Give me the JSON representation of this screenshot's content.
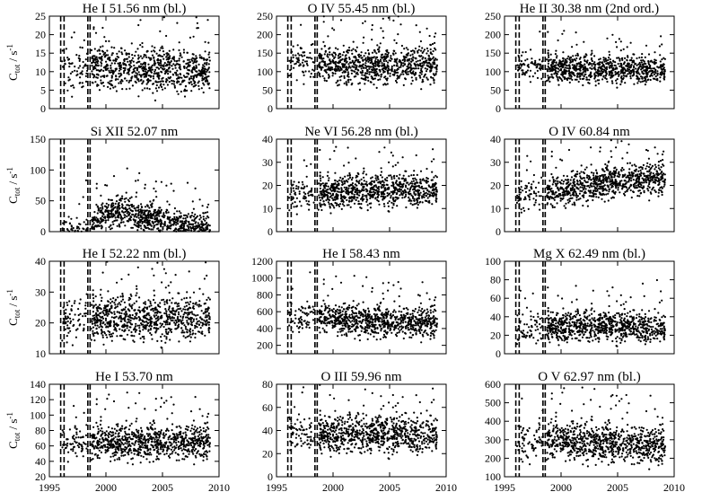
{
  "chart_data": [
    {
      "type": "scatter",
      "title": "He I 51.56 nm (bl.)",
      "ylabel": "C_tot / s^-1",
      "ylim": [
        0,
        25
      ],
      "yticks": [
        0,
        5,
        10,
        15,
        20,
        25
      ],
      "xlim": [
        1995,
        2010
      ],
      "xticks": [
        1995,
        2000,
        2005,
        2010
      ],
      "dashed_x": [
        1996.0,
        1996.3,
        1998.4,
        1998.6
      ],
      "trend_x": [
        1996.1,
        2000,
        2004,
        2009
      ],
      "trend_y": [
        10.5,
        11,
        10.5,
        10.5
      ],
      "spread": 2.8
    },
    {
      "type": "scatter",
      "title": "O IV 55.45 nm (bl.)",
      "ylabel": "",
      "ylim": [
        0,
        250
      ],
      "yticks": [
        0,
        50,
        100,
        150,
        200,
        250
      ],
      "xlim": [
        1995,
        2010
      ],
      "xticks": [
        1995,
        2000,
        2005,
        2010
      ],
      "dashed_x": [
        1996.0,
        1996.3,
        1998.4,
        1998.6
      ],
      "trend_x": [
        1996.1,
        2000,
        2004,
        2009
      ],
      "trend_y": [
        130,
        120,
        115,
        120
      ],
      "spread": 25
    },
    {
      "type": "scatter",
      "title": "He II 30.38 nm (2nd ord.)",
      "ylabel": "",
      "ylim": [
        0,
        250
      ],
      "yticks": [
        0,
        50,
        100,
        150,
        200,
        250
      ],
      "xlim": [
        1995,
        2010
      ],
      "xticks": [
        1995,
        2000,
        2005,
        2010
      ],
      "dashed_x": [
        1996.0,
        1996.3,
        1998.4,
        1998.6
      ],
      "trend_x": [
        1996.1,
        2000,
        2004,
        2009
      ],
      "trend_y": [
        115,
        110,
        105,
        105
      ],
      "spread": 18
    },
    {
      "type": "scatter",
      "title": "Si XII 52.07 nm",
      "ylabel": "C_tot / s^-1",
      "ylim": [
        0,
        150
      ],
      "yticks": [
        0,
        50,
        100,
        150
      ],
      "xlim": [
        1995,
        2010
      ],
      "xticks": [
        1995,
        2000,
        2005,
        2010
      ],
      "dashed_x": [
        1996.0,
        1996.3,
        1998.4,
        1998.6
      ],
      "trend_x": [
        1996.1,
        1998.5,
        2000,
        2001.5,
        2003,
        2005,
        2007,
        2009
      ],
      "trend_y": [
        3,
        5,
        30,
        35,
        25,
        18,
        8,
        4
      ],
      "spread": 12
    },
    {
      "type": "scatter",
      "title": "Ne VI 56.28 nm (bl.)",
      "ylabel": "",
      "ylim": [
        0,
        40
      ],
      "yticks": [
        0,
        10,
        20,
        30,
        40
      ],
      "xlim": [
        1995,
        2010
      ],
      "xticks": [
        1995,
        2000,
        2005,
        2010
      ],
      "dashed_x": [
        1996.0,
        1996.3,
        1998.4,
        1998.6
      ],
      "trend_x": [
        1996.1,
        2000,
        2004,
        2009
      ],
      "trend_y": [
        16,
        17,
        18,
        18
      ],
      "spread": 3.5
    },
    {
      "type": "scatter",
      "title": "O IV 60.84 nm",
      "ylabel": "",
      "ylim": [
        0,
        40
      ],
      "yticks": [
        0,
        10,
        20,
        30,
        40
      ],
      "xlim": [
        1995,
        2010
      ],
      "xticks": [
        1995,
        2000,
        2005,
        2010
      ],
      "dashed_x": [
        1996.0,
        1996.3,
        1998.4,
        1998.6
      ],
      "trend_x": [
        1996.1,
        1998.5,
        2002,
        2005,
        2009
      ],
      "trend_y": [
        16,
        16,
        20,
        22,
        23
      ],
      "spread": 3.5
    },
    {
      "type": "scatter",
      "title": "He I 52.22 nm (bl.)",
      "ylabel": "C_tot / s^-1",
      "ylim": [
        10,
        40
      ],
      "yticks": [
        10,
        20,
        30,
        40
      ],
      "xlim": [
        1995,
        2010
      ],
      "xticks": [
        1995,
        2000,
        2005,
        2010
      ],
      "dashed_x": [
        1996.0,
        1996.3,
        1998.4,
        1998.6
      ],
      "trend_x": [
        1996.1,
        2000,
        2004,
        2009
      ],
      "trend_y": [
        21,
        22,
        21,
        22
      ],
      "spread": 3.5
    },
    {
      "type": "scatter",
      "title": "He I 58.43 nm",
      "ylabel": "",
      "ylim": [
        100,
        1200
      ],
      "yticks": [
        200,
        400,
        600,
        800,
        1000,
        1200
      ],
      "xlim": [
        1995,
        2010
      ],
      "xticks": [
        1995,
        2000,
        2005,
        2010
      ],
      "dashed_x": [
        1996.0,
        1996.3,
        1998.4,
        1998.6
      ],
      "trend_x": [
        1996.1,
        2000,
        2004,
        2009
      ],
      "trend_y": [
        540,
        520,
        480,
        470
      ],
      "spread": 90
    },
    {
      "type": "scatter",
      "title": "Mg X 62.49 nm (bl.)",
      "ylabel": "",
      "ylim": [
        0,
        100
      ],
      "yticks": [
        0,
        20,
        40,
        60,
        80,
        100
      ],
      "xlim": [
        1995,
        2010
      ],
      "xticks": [
        1995,
        2000,
        2005,
        2010
      ],
      "dashed_x": [
        1996.0,
        1996.3,
        1998.4,
        1998.6
      ],
      "trend_x": [
        1996.1,
        2000,
        2004,
        2009
      ],
      "trend_y": [
        27,
        30,
        30,
        27
      ],
      "spread": 8
    },
    {
      "type": "scatter",
      "title": "He I 53.70 nm",
      "ylabel": "C_tot / s^-1",
      "ylim": [
        20,
        140
      ],
      "yticks": [
        20,
        40,
        60,
        80,
        100,
        120,
        140
      ],
      "xlim": [
        1995,
        2010
      ],
      "xticks": [
        1995,
        2000,
        2005,
        2010
      ],
      "dashed_x": [
        1996.0,
        1996.3,
        1998.4,
        1998.6
      ],
      "trend_x": [
        1996.1,
        2000,
        2004,
        2009
      ],
      "trend_y": [
        63,
        65,
        65,
        65
      ],
      "spread": 11
    },
    {
      "type": "scatter",
      "title": "O III 59.96 nm",
      "ylabel": "",
      "ylim": [
        0,
        80
      ],
      "yticks": [
        0,
        20,
        40,
        60,
        80
      ],
      "xlim": [
        1995,
        2010
      ],
      "xticks": [
        1995,
        2000,
        2005,
        2010
      ],
      "dashed_x": [
        1996.0,
        1996.3,
        1998.4,
        1998.6
      ],
      "trend_x": [
        1996.1,
        2000,
        2004,
        2009
      ],
      "trend_y": [
        34,
        38,
        37,
        36
      ],
      "spread": 8
    },
    {
      "type": "scatter",
      "title": "O V 62.97 nm (bl.)",
      "ylabel": "",
      "ylim": [
        100,
        600
      ],
      "yticks": [
        100,
        200,
        300,
        400,
        500,
        600
      ],
      "xlim": [
        1995,
        2010
      ],
      "xticks": [
        1995,
        2000,
        2005,
        2010
      ],
      "dashed_x": [
        1996.0,
        1996.3,
        1998.4,
        1998.6
      ],
      "trend_x": [
        1996.1,
        2000,
        2004,
        2009
      ],
      "trend_y": [
        280,
        300,
        280,
        270
      ],
      "spread": 50
    }
  ]
}
